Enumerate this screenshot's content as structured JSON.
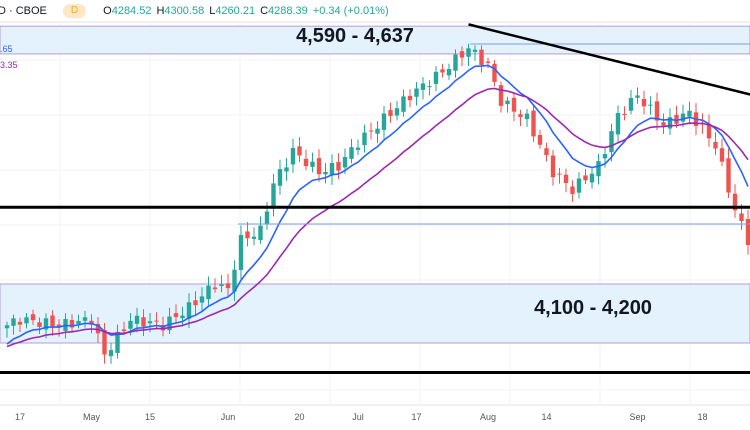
{
  "header": {
    "symbol": "D · CBOE",
    "interval": "D",
    "open_label": "O",
    "open": "4284.52",
    "high_label": "H",
    "high": "4300.58",
    "low_label": "L",
    "low": "4260.21",
    "close_label": "C",
    "close": "4288.39",
    "change": "+0.34 (+0.01%)"
  },
  "indicators": [
    {
      "name": "fast MA value (cut)",
      "value": ".65",
      "color": "#2962ff"
    },
    {
      "name": "slow MA value (cut)",
      "value": "3.35",
      "color": "#9c27b0"
    }
  ],
  "colors": {
    "up": "#26a69a",
    "down": "#ef5350",
    "zone": "#e3f2fd",
    "fast_ma": "#2962ff",
    "slow_ma": "#9c27b0"
  },
  "chart_data": {
    "type": "candlestick",
    "title": "",
    "x_ticks": [
      "17",
      "May",
      "15",
      "Jun",
      "20",
      "Jul",
      "17",
      "Aug",
      "14",
      "Sep",
      "18"
    ],
    "x_tick_index": [
      2,
      13,
      22,
      34,
      45,
      54,
      63,
      74,
      83,
      97,
      107
    ],
    "ylim": [
      4035,
      4680
    ],
    "close_anchors": [
      [
        0,
        4130
      ],
      [
        2,
        4140
      ],
      [
        8,
        4130
      ],
      [
        13,
        4140
      ],
      [
        15,
        4080
      ],
      [
        19,
        4140
      ],
      [
        24,
        4130
      ],
      [
        28,
        4160
      ],
      [
        32,
        4200
      ],
      [
        34,
        4190
      ],
      [
        36,
        4275
      ],
      [
        39,
        4290
      ],
      [
        41,
        4370
      ],
      [
        44,
        4425
      ],
      [
        48,
        4390
      ],
      [
        51,
        4400
      ],
      [
        54,
        4440
      ],
      [
        58,
        4480
      ],
      [
        62,
        4520
      ],
      [
        67,
        4560
      ],
      [
        71,
        4600
      ],
      [
        74,
        4570
      ],
      [
        76,
        4510
      ],
      [
        80,
        4480
      ],
      [
        84,
        4390
      ],
      [
        87,
        4360
      ],
      [
        91,
        4400
      ],
      [
        94,
        4485
      ],
      [
        97,
        4520
      ],
      [
        101,
        4470
      ],
      [
        105,
        4490
      ],
      [
        109,
        4435
      ],
      [
        112,
        4325
      ],
      [
        114,
        4275
      ]
    ],
    "zones": [
      {
        "label": "4,590 - 4,637",
        "low": 4590,
        "high": 4637
      },
      {
        "label": "4,100 - 4,200",
        "low": 4100,
        "high": 4200
      }
    ],
    "support_lines": [
      4330,
      4050
    ],
    "trendline": {
      "from": [
        71,
        4640
      ],
      "to": [
        114,
        4520
      ]
    },
    "moving_averages": [
      "fast EMA (blue)",
      "slow EMA (purple)"
    ]
  }
}
